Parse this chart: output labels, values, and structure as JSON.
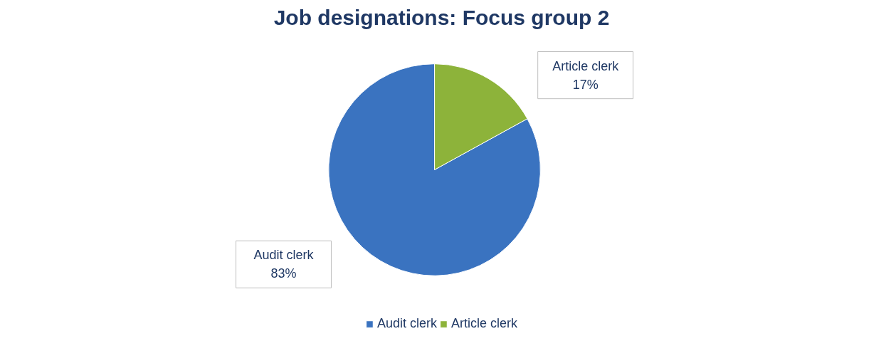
{
  "chart_data": {
    "type": "pie",
    "title": "Job designations: Focus group 2",
    "categories": [
      "Audit clerk",
      "Article clerk"
    ],
    "values": [
      83,
      17
    ],
    "colors": [
      "#3a73c0",
      "#8db33a"
    ],
    "value_labels": [
      "83%",
      "17%"
    ],
    "legend": "bottom"
  }
}
